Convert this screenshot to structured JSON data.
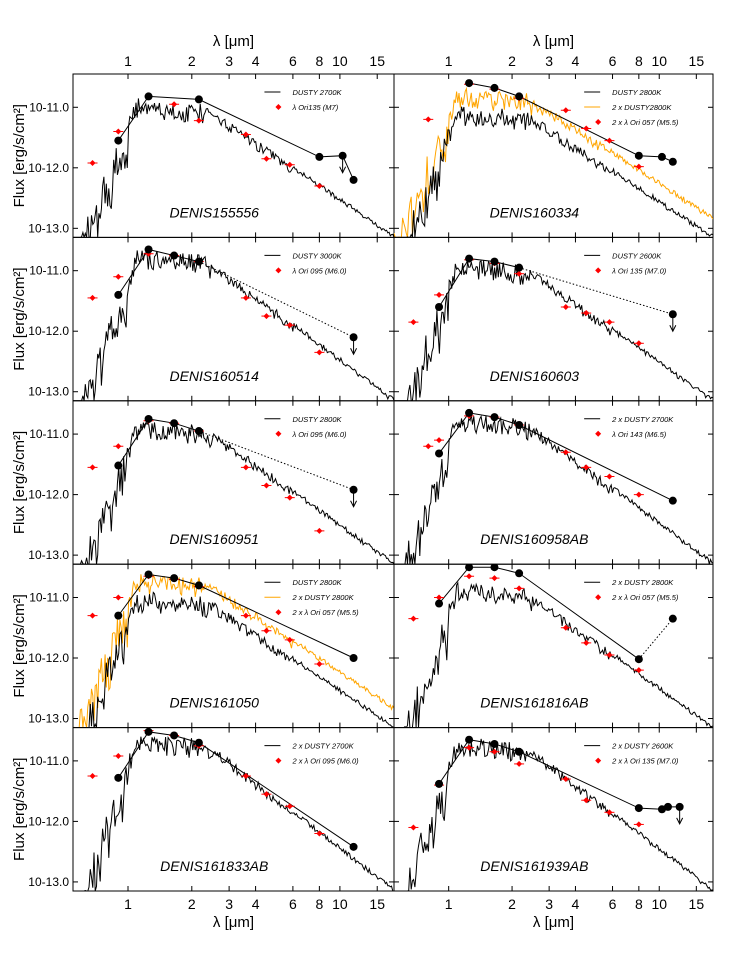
{
  "chart_data": {
    "type": "line",
    "xlabel": "λ [μm]",
    "ylabel": "Flux [erg/s/cm²]",
    "x_scale": "log",
    "y_scale": "log",
    "xlim": [
      0.55,
      18
    ],
    "ylim": [
      -13.15,
      -10.45
    ],
    "x_ticks": [
      1,
      2,
      3,
      4,
      6,
      8,
      10,
      15
    ],
    "x_tick_labels": [
      "1",
      "2",
      "3",
      "4",
      "6",
      "8",
      "10",
      "15"
    ],
    "y_ticks": [
      -11,
      -12,
      -13
    ],
    "y_tick_labels": [
      "10-11.0",
      "10-12.0",
      "10-13.0"
    ],
    "colors": {
      "model": "#000000",
      "model2": "#ffa500",
      "obs": "#000000",
      "comparison": "#ff0000"
    },
    "panels": [
      {
        "name": "DENIS155556",
        "legend": [
          {
            "label": "DUSTY 2700K",
            "kind": "line-black"
          },
          {
            "label": "λ Ori135 (M7)",
            "kind": "diamond-red"
          }
        ],
        "model_peak": -10.85,
        "model_dip": -10.95,
        "model_tail": -13.1,
        "double_model": false,
        "obs": [
          [
            0.9,
            -11.55
          ],
          [
            1.25,
            -10.82
          ],
          [
            2.16,
            -10.87
          ],
          [
            8.0,
            -11.82
          ],
          [
            10.3,
            -11.8
          ],
          [
            11.6,
            -12.2
          ]
        ],
        "upper_limits": [
          [
            10.3,
            -11.8
          ]
        ],
        "comparison": [
          [
            0.68,
            -11.92
          ],
          [
            0.9,
            -11.4
          ],
          [
            1.65,
            -10.95
          ],
          [
            2.16,
            -11.22
          ],
          [
            3.6,
            -11.45
          ],
          [
            4.5,
            -11.85
          ],
          [
            5.8,
            -11.95
          ],
          [
            8.0,
            -12.3
          ]
        ],
        "connect": "solid"
      },
      {
        "name": "DENIS160334",
        "legend": [
          {
            "label": "DUSTY 2800K",
            "kind": "line-black"
          },
          {
            "label": "2 x DUSTY2800K",
            "kind": "line-orange"
          },
          {
            "label": "2 x λ Ori 057 (M5.5)",
            "kind": "diamond-red"
          }
        ],
        "model_peak": -10.98,
        "model_dip": -11.05,
        "model_tail": -13.1,
        "double_model": true,
        "obs": [
          [
            1.25,
            -10.6
          ],
          [
            1.65,
            -10.68
          ],
          [
            2.16,
            -10.82
          ],
          [
            8.0,
            -11.8
          ],
          [
            10.3,
            -11.82
          ],
          [
            11.6,
            -11.9
          ]
        ],
        "upper_limits": [],
        "comparison": [
          [
            0.8,
            -11.2
          ],
          [
            1.25,
            -10.62
          ],
          [
            1.65,
            -10.7
          ],
          [
            2.16,
            -10.85
          ],
          [
            3.6,
            -11.05
          ],
          [
            4.5,
            -11.35
          ],
          [
            5.8,
            -11.55
          ],
          [
            8.0,
            -11.98
          ]
        ],
        "connect": "solid"
      },
      {
        "name": "DENIS160514",
        "legend": [
          {
            "label": "DUSTY 3000K",
            "kind": "line-black"
          },
          {
            "label": "λ Ori 095 (M6.0)",
            "kind": "diamond-red"
          }
        ],
        "model_peak": -10.65,
        "model_dip": -10.75,
        "model_tail": -13.1,
        "double_model": false,
        "obs": [
          [
            0.9,
            -11.4
          ],
          [
            1.25,
            -10.65
          ],
          [
            1.65,
            -10.75
          ],
          [
            2.16,
            -10.85
          ],
          [
            11.6,
            -12.1
          ]
        ],
        "upper_limits": [
          [
            11.6,
            -12.1
          ]
        ],
        "comparison": [
          [
            0.68,
            -11.45
          ],
          [
            0.9,
            -11.1
          ],
          [
            1.25,
            -10.72
          ],
          [
            1.65,
            -10.75
          ],
          [
            2.16,
            -10.85
          ],
          [
            3.6,
            -11.45
          ],
          [
            4.5,
            -11.75
          ],
          [
            5.8,
            -11.9
          ],
          [
            8.0,
            -12.35
          ]
        ],
        "connect": "dotted"
      },
      {
        "name": "DENIS160603",
        "legend": [
          {
            "label": "DUSTY 2600K",
            "kind": "line-black"
          },
          {
            "label": "λ Ori 135 (M7.0)",
            "kind": "diamond-red"
          }
        ],
        "model_peak": -10.8,
        "model_dip": -10.9,
        "model_tail": -13.1,
        "double_model": false,
        "obs": [
          [
            0.9,
            -11.6
          ],
          [
            1.25,
            -10.8
          ],
          [
            1.65,
            -10.85
          ],
          [
            2.16,
            -10.95
          ],
          [
            11.6,
            -11.72
          ]
        ],
        "upper_limits": [
          [
            11.6,
            -11.72
          ]
        ],
        "comparison": [
          [
            0.68,
            -11.85
          ],
          [
            0.9,
            -11.4
          ],
          [
            1.25,
            -10.82
          ],
          [
            1.65,
            -10.88
          ],
          [
            2.16,
            -11.05
          ],
          [
            3.6,
            -11.6
          ],
          [
            4.5,
            -11.7
          ],
          [
            5.8,
            -11.85
          ],
          [
            8.0,
            -12.2
          ]
        ],
        "connect": "dotted"
      },
      {
        "name": "DENIS160951",
        "legend": [
          {
            "label": "DUSTY 2800K",
            "kind": "line-black"
          },
          {
            "label": "λ Ori 095 (M6.0)",
            "kind": "diamond-red"
          }
        ],
        "model_peak": -10.75,
        "model_dip": -10.85,
        "model_tail": -13.1,
        "double_model": false,
        "obs": [
          [
            0.9,
            -11.52
          ],
          [
            1.25,
            -10.75
          ],
          [
            1.65,
            -10.82
          ],
          [
            2.16,
            -10.95
          ],
          [
            11.6,
            -11.92
          ]
        ],
        "upper_limits": [
          [
            11.6,
            -11.92
          ]
        ],
        "comparison": [
          [
            0.68,
            -11.55
          ],
          [
            0.9,
            -11.2
          ],
          [
            1.25,
            -10.78
          ],
          [
            1.65,
            -10.82
          ],
          [
            2.16,
            -10.95
          ],
          [
            3.6,
            -11.55
          ],
          [
            4.5,
            -11.85
          ],
          [
            5.8,
            -12.05
          ],
          [
            8.0,
            -12.6
          ]
        ],
        "connect": "dotted"
      },
      {
        "name": "DENIS160958AB",
        "legend": [
          {
            "label": "2 x DUSTY 2700K",
            "kind": "line-black"
          },
          {
            "label": "λ Ori 143 (M6.5)",
            "kind": "diamond-red"
          }
        ],
        "model_peak": -10.65,
        "model_dip": -10.75,
        "model_tail": -13.1,
        "double_model": false,
        "obs": [
          [
            0.9,
            -11.32
          ],
          [
            1.25,
            -10.65
          ],
          [
            1.65,
            -10.72
          ],
          [
            2.16,
            -10.85
          ],
          [
            11.6,
            -12.1
          ]
        ],
        "upper_limits": [],
        "comparison": [
          [
            0.8,
            -11.2
          ],
          [
            0.9,
            -11.1
          ],
          [
            1.25,
            -10.7
          ],
          [
            1.65,
            -10.72
          ],
          [
            2.16,
            -10.85
          ],
          [
            3.6,
            -11.3
          ],
          [
            4.5,
            -11.55
          ],
          [
            5.8,
            -11.7
          ],
          [
            8.0,
            -12.0
          ]
        ],
        "connect": "solid"
      },
      {
        "name": "DENIS161050",
        "legend": [
          {
            "label": "DUSTY 2800K",
            "kind": "line-black"
          },
          {
            "label": "2 x DUSTY 2800K",
            "kind": "line-orange"
          },
          {
            "label": "2 x λ Ori 057 (M5.5)",
            "kind": "diamond-red"
          }
        ],
        "model_peak": -10.9,
        "model_dip": -10.98,
        "model_tail": -13.1,
        "double_model": true,
        "obs": [
          [
            0.9,
            -11.3
          ],
          [
            1.25,
            -10.62
          ],
          [
            1.65,
            -10.68
          ],
          [
            2.16,
            -10.8
          ],
          [
            11.6,
            -12.0
          ]
        ],
        "upper_limits": [],
        "comparison": [
          [
            0.68,
            -11.3
          ],
          [
            0.9,
            -11.0
          ],
          [
            1.25,
            -10.65
          ],
          [
            1.65,
            -10.7
          ],
          [
            2.16,
            -10.82
          ],
          [
            3.6,
            -11.3
          ],
          [
            4.5,
            -11.55
          ],
          [
            5.8,
            -11.7
          ],
          [
            8.0,
            -12.1
          ]
        ],
        "connect": "solid"
      },
      {
        "name": "DENIS161816AB",
        "legend": [
          {
            "label": "2 x DUSTY 2800K",
            "kind": "line-black"
          },
          {
            "label": "2 x λ Ori 057 (M5.5)",
            "kind": "diamond-red"
          }
        ],
        "model_peak": -10.75,
        "model_dip": -10.85,
        "model_tail": -13.1,
        "double_model": false,
        "obs": [
          [
            0.9,
            -11.1
          ],
          [
            1.25,
            -10.5
          ],
          [
            1.65,
            -10.5
          ],
          [
            2.16,
            -10.6
          ],
          [
            8.0,
            -12.02
          ],
          [
            11.6,
            -11.35
          ]
        ],
        "upper_limits": [],
        "comparison": [
          [
            0.68,
            -11.35
          ],
          [
            0.9,
            -11.0
          ],
          [
            1.25,
            -10.65
          ],
          [
            1.65,
            -10.68
          ],
          [
            2.16,
            -10.85
          ],
          [
            3.6,
            -11.5
          ],
          [
            4.5,
            -11.75
          ],
          [
            5.8,
            -11.95
          ],
          [
            8.0,
            -12.2
          ]
        ],
        "connect": "dotted-end"
      },
      {
        "name": "DENIS161833AB",
        "legend": [
          {
            "label": "2 x DUSTY 2700K",
            "kind": "line-black"
          },
          {
            "label": "2 x λ Ori 095 (M6.0)",
            "kind": "diamond-red"
          }
        ],
        "model_peak": -10.55,
        "model_dip": -10.65,
        "model_tail": -13.1,
        "double_model": false,
        "obs": [
          [
            0.9,
            -11.28
          ],
          [
            1.25,
            -10.52
          ],
          [
            1.65,
            -10.58
          ],
          [
            2.16,
            -10.7
          ],
          [
            11.6,
            -12.42
          ]
        ],
        "upper_limits": [],
        "comparison": [
          [
            0.68,
            -11.25
          ],
          [
            0.9,
            -10.92
          ],
          [
            1.25,
            -10.5
          ],
          [
            1.65,
            -10.58
          ],
          [
            2.16,
            -10.75
          ],
          [
            3.6,
            -11.25
          ],
          [
            4.5,
            -11.55
          ],
          [
            5.8,
            -11.75
          ],
          [
            8.0,
            -12.2
          ]
        ],
        "connect": "solid"
      },
      {
        "name": "DENIS161939AB",
        "legend": [
          {
            "label": "2 x DUSTY 2600K",
            "kind": "line-black"
          },
          {
            "label": "2 x λ Ori 135 (M7.0)",
            "kind": "diamond-red"
          }
        ],
        "model_peak": -10.6,
        "model_dip": -10.7,
        "model_tail": -13.1,
        "double_model": false,
        "obs": [
          [
            0.9,
            -11.38
          ],
          [
            1.25,
            -10.65
          ],
          [
            1.65,
            -10.72
          ],
          [
            2.16,
            -10.85
          ],
          [
            8.0,
            -11.78
          ],
          [
            10.3,
            -11.8
          ],
          [
            11.0,
            -11.76
          ],
          [
            12.5,
            -11.76
          ]
        ],
        "upper_limits": [
          [
            12.5,
            -11.76
          ]
        ],
        "comparison": [
          [
            0.68,
            -12.1
          ],
          [
            0.9,
            -11.4
          ],
          [
            1.25,
            -10.78
          ],
          [
            1.65,
            -10.85
          ],
          [
            2.16,
            -11.05
          ],
          [
            3.6,
            -11.3
          ],
          [
            4.5,
            -11.65
          ],
          [
            5.8,
            -11.85
          ],
          [
            8.0,
            -12.05
          ]
        ],
        "connect": "solid"
      }
    ]
  }
}
